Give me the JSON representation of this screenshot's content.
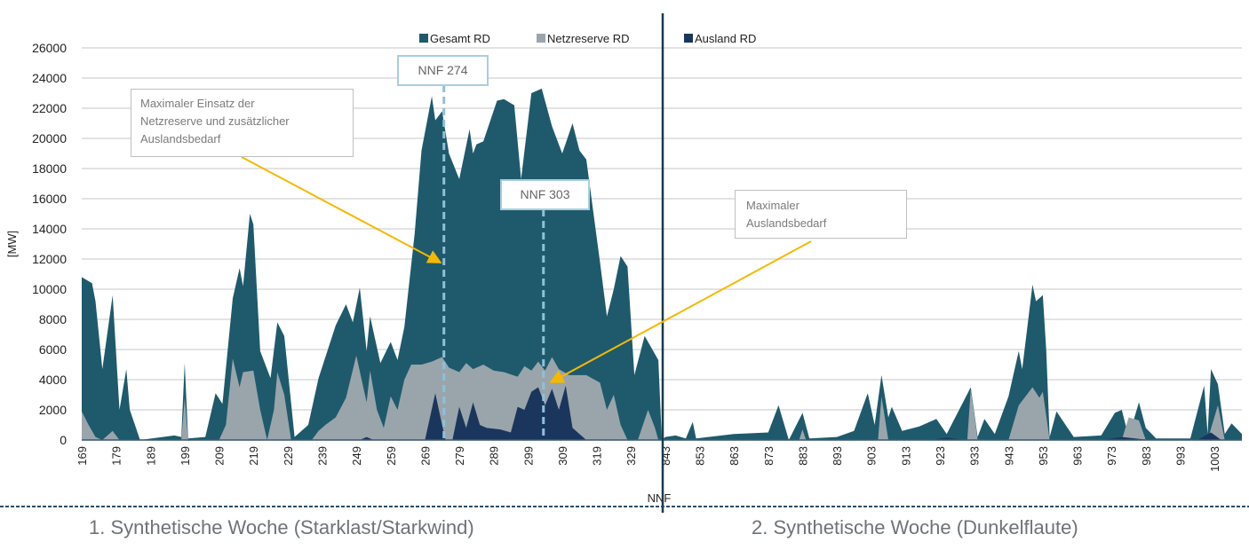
{
  "chart_data": {
    "type": "area",
    "stacked": false,
    "ylabel": "[MW]",
    "xlabel": "NNF",
    "ylim": [
      0,
      26000
    ],
    "yticks": [
      0,
      2000,
      4000,
      6000,
      8000,
      10000,
      12000,
      14000,
      16000,
      18000,
      20000,
      22000,
      24000,
      26000
    ],
    "grid": true,
    "legend_position": "top-center",
    "segments": [
      {
        "label": "1. Synthetische Woche (Starklast/Starkwind)",
        "x_start": 169,
        "x_end": 338
      },
      {
        "label": "2. Synthetische Woche (Dunkelflaute)",
        "x_start": 843,
        "x_end": 1011
      }
    ],
    "xticks": [
      169,
      179,
      189,
      199,
      209,
      219,
      229,
      239,
      249,
      259,
      269,
      279,
      289,
      299,
      309,
      319,
      329,
      843,
      853,
      863,
      873,
      883,
      893,
      903,
      913,
      923,
      933,
      943,
      953,
      963,
      973,
      983,
      993,
      1003
    ],
    "series": [
      {
        "name": "Gesamt RD",
        "color": "#1e5a6c",
        "points": [
          [
            169,
            10800
          ],
          [
            172,
            10400
          ],
          [
            173,
            9200
          ],
          [
            175,
            4700
          ],
          [
            178,
            9600
          ],
          [
            180,
            2000
          ],
          [
            182,
            4700
          ],
          [
            183,
            2000
          ],
          [
            186,
            0
          ],
          [
            196,
            300
          ],
          [
            198,
            200
          ],
          [
            199,
            5100
          ],
          [
            200,
            100
          ],
          [
            205,
            200
          ],
          [
            208,
            3100
          ],
          [
            210,
            2400
          ],
          [
            213,
            9400
          ],
          [
            215,
            11400
          ],
          [
            216,
            10200
          ],
          [
            218,
            15000
          ],
          [
            219,
            14300
          ],
          [
            221,
            5900
          ],
          [
            224,
            4100
          ],
          [
            226,
            7800
          ],
          [
            228,
            6900
          ],
          [
            231,
            200
          ],
          [
            235,
            1000
          ],
          [
            238,
            4100
          ],
          [
            243,
            7600
          ],
          [
            246,
            9000
          ],
          [
            248,
            7800
          ],
          [
            250,
            10100
          ],
          [
            252,
            5900
          ],
          [
            253,
            8200
          ],
          [
            256,
            5100
          ],
          [
            259,
            6500
          ],
          [
            261,
            5300
          ],
          [
            263,
            7500
          ],
          [
            266,
            13700
          ],
          [
            268,
            19200
          ],
          [
            271,
            22800
          ],
          [
            272,
            21200
          ],
          [
            274,
            21800
          ],
          [
            276,
            19000
          ],
          [
            279,
            17300
          ],
          [
            282,
            20600
          ],
          [
            283,
            19000
          ],
          [
            284,
            19600
          ],
          [
            286,
            19800
          ],
          [
            290,
            22500
          ],
          [
            292,
            22600
          ],
          [
            295,
            22200
          ],
          [
            297,
            17300
          ],
          [
            300,
            23000
          ],
          [
            303,
            23300
          ],
          [
            306,
            20800
          ],
          [
            309,
            19000
          ],
          [
            312,
            21000
          ],
          [
            314,
            19200
          ],
          [
            316,
            18600
          ],
          [
            320,
            11800
          ],
          [
            322,
            8200
          ],
          [
            324,
            10000
          ],
          [
            326,
            12200
          ],
          [
            328,
            11500
          ],
          [
            330,
            4300
          ],
          [
            333,
            6900
          ],
          [
            337,
            5300
          ],
          [
            338,
            0
          ],
          [
            843,
            200
          ],
          [
            846,
            300
          ],
          [
            849,
            100
          ],
          [
            851,
            1200
          ],
          [
            852,
            100
          ],
          [
            863,
            400
          ],
          [
            873,
            500
          ],
          [
            876,
            2300
          ],
          [
            879,
            0
          ],
          [
            883,
            1800
          ],
          [
            885,
            100
          ],
          [
            893,
            200
          ],
          [
            898,
            600
          ],
          [
            902,
            3100
          ],
          [
            904,
            1000
          ],
          [
            906,
            4300
          ],
          [
            908,
            1500
          ],
          [
            909,
            2200
          ],
          [
            912,
            600
          ],
          [
            917,
            900
          ],
          [
            922,
            1400
          ],
          [
            925,
            400
          ],
          [
            932,
            3500
          ],
          [
            934,
            200
          ],
          [
            936,
            1400
          ],
          [
            939,
            400
          ],
          [
            943,
            2900
          ],
          [
            946,
            5900
          ],
          [
            947,
            4700
          ],
          [
            950,
            10300
          ],
          [
            951,
            9200
          ],
          [
            953,
            9600
          ],
          [
            954,
            5900
          ],
          [
            955,
            200
          ],
          [
            957,
            1900
          ],
          [
            962,
            200
          ],
          [
            970,
            300
          ],
          [
            974,
            1800
          ],
          [
            976,
            2000
          ],
          [
            978,
            200
          ],
          [
            981,
            2500
          ],
          [
            983,
            800
          ],
          [
            986,
            100
          ],
          [
            996,
            100
          ],
          [
            1000,
            3600
          ],
          [
            1001,
            400
          ],
          [
            1002,
            4700
          ],
          [
            1004,
            3700
          ],
          [
            1006,
            400
          ],
          [
            1008,
            1100
          ],
          [
            1011,
            400
          ]
        ]
      },
      {
        "name": "Netzreserve RD",
        "color": "#9aa5ab",
        "points": [
          [
            169,
            1900
          ],
          [
            171,
            1000
          ],
          [
            173,
            200
          ],
          [
            175,
            0
          ],
          [
            178,
            600
          ],
          [
            180,
            0
          ],
          [
            198,
            0
          ],
          [
            199,
            2800
          ],
          [
            200,
            0
          ],
          [
            209,
            0
          ],
          [
            211,
            1000
          ],
          [
            213,
            5400
          ],
          [
            215,
            3500
          ],
          [
            216,
            4500
          ],
          [
            219,
            4600
          ],
          [
            221,
            2000
          ],
          [
            223,
            0
          ],
          [
            225,
            2000
          ],
          [
            226,
            4500
          ],
          [
            228,
            3000
          ],
          [
            230,
            0
          ],
          [
            236,
            0
          ],
          [
            238,
            600
          ],
          [
            240,
            1000
          ],
          [
            243,
            1500
          ],
          [
            246,
            2800
          ],
          [
            249,
            5600
          ],
          [
            252,
            2500
          ],
          [
            253,
            4600
          ],
          [
            255,
            2000
          ],
          [
            257,
            800
          ],
          [
            259,
            2900
          ],
          [
            261,
            2000
          ],
          [
            263,
            4000
          ],
          [
            265,
            5000
          ],
          [
            268,
            5000
          ],
          [
            271,
            5200
          ],
          [
            274,
            5500
          ],
          [
            276,
            4800
          ],
          [
            279,
            4500
          ],
          [
            281,
            5100
          ],
          [
            283,
            4700
          ],
          [
            286,
            5000
          ],
          [
            289,
            4600
          ],
          [
            292,
            4500
          ],
          [
            296,
            4200
          ],
          [
            298,
            4900
          ],
          [
            300,
            4600
          ],
          [
            302,
            5200
          ],
          [
            304,
            4600
          ],
          [
            306,
            5500
          ],
          [
            308,
            4700
          ],
          [
            311,
            4300
          ],
          [
            316,
            4300
          ],
          [
            320,
            3800
          ],
          [
            322,
            2000
          ],
          [
            324,
            3000
          ],
          [
            326,
            1000
          ],
          [
            328,
            0
          ],
          [
            331,
            0
          ],
          [
            334,
            2000
          ],
          [
            336,
            800
          ],
          [
            337,
            0
          ],
          [
            338,
            0
          ],
          [
            843,
            0
          ],
          [
            873,
            0
          ],
          [
            876,
            0
          ],
          [
            882,
            0
          ],
          [
            883,
            700
          ],
          [
            884,
            0
          ],
          [
            905,
            0
          ],
          [
            906,
            2900
          ],
          [
            908,
            0
          ],
          [
            931,
            0
          ],
          [
            932,
            3400
          ],
          [
            934,
            0
          ],
          [
            943,
            0
          ],
          [
            946,
            2300
          ],
          [
            950,
            3500
          ],
          [
            952,
            2800
          ],
          [
            953,
            3200
          ],
          [
            955,
            0
          ],
          [
            976,
            0
          ],
          [
            978,
            1500
          ],
          [
            981,
            1300
          ],
          [
            983,
            0
          ],
          [
            1001,
            0
          ],
          [
            1004,
            2300
          ],
          [
            1006,
            0
          ],
          [
            1011,
            0
          ]
        ]
      },
      {
        "name": "Ausland RD",
        "color": "#1b365d",
        "points": [
          [
            169,
            0
          ],
          [
            250,
            0
          ],
          [
            252,
            200
          ],
          [
            254,
            0
          ],
          [
            269,
            0
          ],
          [
            272,
            3100
          ],
          [
            274,
            1000
          ],
          [
            275,
            0
          ],
          [
            277,
            0
          ],
          [
            279,
            2200
          ],
          [
            281,
            800
          ],
          [
            283,
            2500
          ],
          [
            285,
            1000
          ],
          [
            287,
            800
          ],
          [
            291,
            700
          ],
          [
            294,
            500
          ],
          [
            296,
            2200
          ],
          [
            298,
            2000
          ],
          [
            300,
            3200
          ],
          [
            302,
            3500
          ],
          [
            304,
            2300
          ],
          [
            306,
            3400
          ],
          [
            308,
            2000
          ],
          [
            310,
            3600
          ],
          [
            312,
            800
          ],
          [
            316,
            0
          ],
          [
            338,
            0
          ],
          [
            843,
            0
          ],
          [
            920,
            0
          ],
          [
            925,
            150
          ],
          [
            930,
            0
          ],
          [
            970,
            0
          ],
          [
            976,
            200
          ],
          [
            984,
            0
          ],
          [
            998,
            0
          ],
          [
            1002,
            500
          ],
          [
            1005,
            0
          ],
          [
            1011,
            0
          ]
        ]
      }
    ],
    "annotations": {
      "note_left": "Maximaler Einsatz der Netzreserve und zusätzlicher Auslandsbedarf",
      "note_left_lines": [
        "Maximaler Einsatz der",
        "Netzreserve und zusätzlicher",
        "Auslandsbedarf"
      ],
      "note_right_lines": [
        "Maximaler",
        "Auslandsbedarf"
      ],
      "marker_1": "NNF 274",
      "marker_2": "NNF 303"
    }
  },
  "colors": {
    "arrow": "#f5b800",
    "marker_line": "#8fc0d8",
    "divider": "#1b3a4b"
  }
}
